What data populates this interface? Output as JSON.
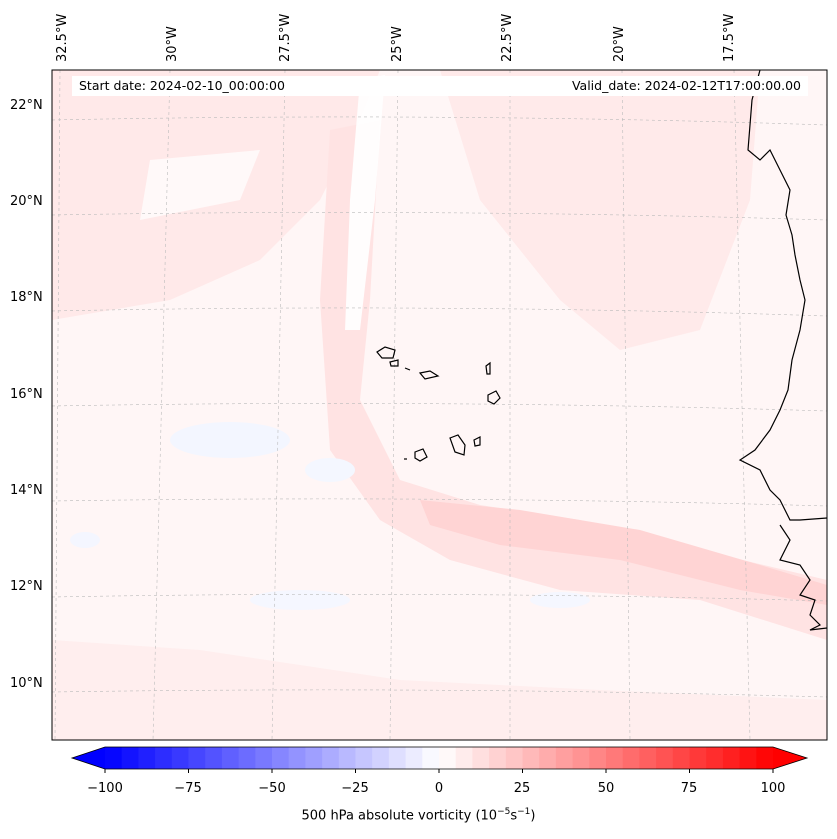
{
  "header": {
    "start_date": "Start date: 2024-02-10_00:00:00",
    "valid_date": "Valid_date: 2024-02-12T17:00:00.00"
  },
  "lon_labels": [
    "32.5°W",
    "30°W",
    "27.5°W",
    "25°W",
    "22.5°W",
    "20°W",
    "17.5°W"
  ],
  "lat_labels": [
    "22°N",
    "20°N",
    "18°N",
    "16°N",
    "14°N",
    "12°N",
    "10°N"
  ],
  "colorbar": {
    "title_prefix": "500 hPa absolute vorticity (10",
    "title_exp1": "−5",
    "title_mid": "s",
    "title_exp2": "−1",
    "title_suffix": ")",
    "ticks": [
      "−100",
      "−75",
      "−50",
      "−25",
      "0",
      "25",
      "50",
      "75",
      "100"
    ],
    "vmin": -100,
    "vmax": 100,
    "low_color": "#0000ff",
    "mid_color": "#ffffff",
    "high_color": "#ff0000"
  },
  "field": {
    "background_value": 4,
    "description_values": [
      8,
      12,
      16
    ]
  }
}
